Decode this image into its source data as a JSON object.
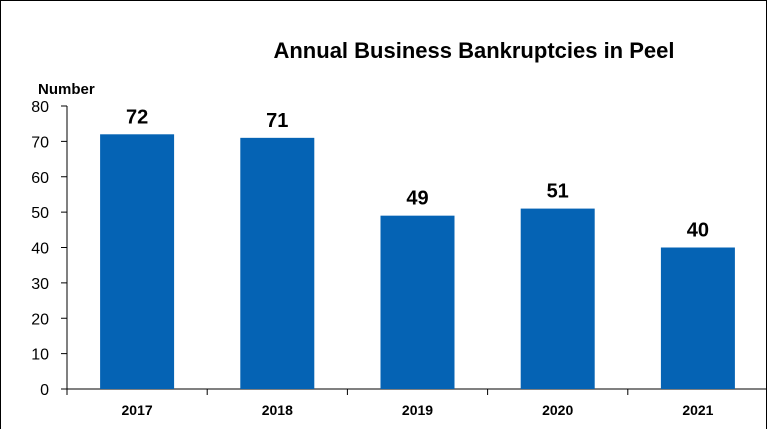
{
  "chart_data": {
    "type": "bar",
    "title": "Annual Business Bankruptcies in Peel",
    "xlabel": "",
    "ylabel": "Number",
    "categories": [
      "2017",
      "2018",
      "2019",
      "2020",
      "2021"
    ],
    "values": [
      72,
      71,
      49,
      51,
      40
    ],
    "data_labels": [
      "72",
      "71",
      "49",
      "51",
      "40"
    ],
    "yticks": [
      "0",
      "10",
      "20",
      "30",
      "40",
      "50",
      "60",
      "70",
      "80"
    ],
    "ylim": [
      0,
      80
    ],
    "grid": false,
    "legend": "none",
    "bar_color": "#0563b4"
  }
}
